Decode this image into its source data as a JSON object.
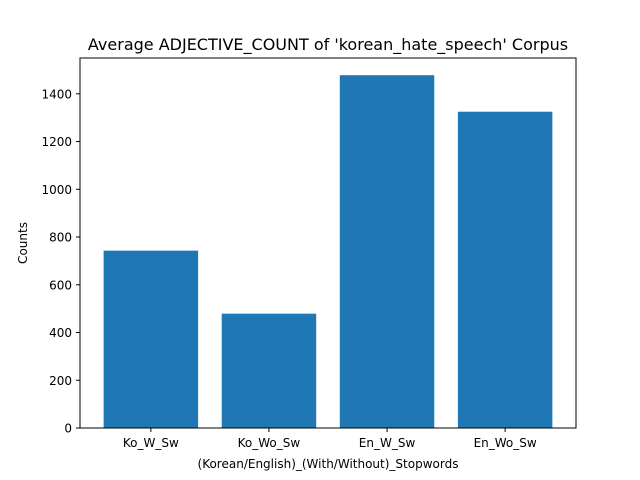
{
  "chart_data": {
    "type": "bar",
    "title": "Average ADJECTIVE_COUNT of 'korean_hate_speech' Corpus",
    "xlabel": "(Korean/English)_(With/Without)_Stopwords",
    "ylabel": "Counts",
    "categories": [
      "Ko_W_Sw",
      "Ko_Wo_Sw",
      "En_W_Sw",
      "En_Wo_Sw"
    ],
    "values": [
      743,
      479,
      1478,
      1325
    ],
    "ylim": [
      0,
      1550
    ],
    "yticks": [
      0,
      200,
      400,
      600,
      800,
      1000,
      1200,
      1400
    ],
    "bar_color": "#1f77b4",
    "grid": false,
    "legend": "none"
  }
}
